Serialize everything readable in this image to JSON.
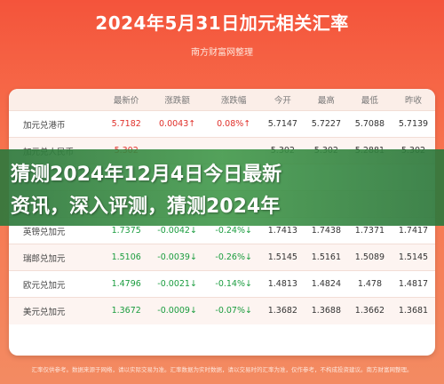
{
  "header": {
    "title": "2024年5月31日加元相关汇率",
    "source": "南方财富网整理"
  },
  "table": {
    "columns": [
      "",
      "最新价",
      "涨跌额",
      "涨跌幅",
      "今开",
      "最高",
      "最低",
      "昨收"
    ],
    "rows": [
      {
        "name": "加元兑港币",
        "price": "5.7182",
        "change": "0.0043↑",
        "pct": "0.08%↑",
        "open": "5.7147",
        "high": "5.7227",
        "low": "5.7088",
        "prev": "5.7139",
        "dir": "up"
      },
      {
        "name": "加元兑人民币",
        "price": "5.302",
        "change": "",
        "pct": "",
        "open": "5.302",
        "high": "5.302",
        "low": "5.2881",
        "prev": "5.302",
        "dir": "up"
      },
      {
        "name": "",
        "price": "",
        "change": "",
        "pct": "",
        "open": "",
        "high": "",
        "low": "",
        "prev": "",
        "dir": "up"
      },
      {
        "name": "",
        "price": "",
        "change": "",
        "pct": "",
        "open": "",
        "high": "",
        "low": "",
        "prev": "",
        "dir": "up"
      },
      {
        "name": "英镑兑加元",
        "price": "1.7375",
        "change": "-0.0042↓",
        "pct": "-0.24%↓",
        "open": "1.7413",
        "high": "1.7438",
        "low": "1.7371",
        "prev": "1.7417",
        "dir": "down"
      },
      {
        "name": "瑞郎兑加元",
        "price": "1.5106",
        "change": "-0.0039↓",
        "pct": "-0.26%↓",
        "open": "1.5145",
        "high": "1.5161",
        "low": "1.5089",
        "prev": "1.5145",
        "dir": "down"
      },
      {
        "name": "欧元兑加元",
        "price": "1.4796",
        "change": "-0.0021↓",
        "pct": "-0.14%↓",
        "open": "1.4813",
        "high": "1.4824",
        "low": "1.478",
        "prev": "1.4817",
        "dir": "down"
      },
      {
        "name": "美元兑加元",
        "price": "1.3672",
        "change": "-0.0009↓",
        "pct": "-0.07%↓",
        "open": "1.3682",
        "high": "1.3688",
        "low": "1.3662",
        "prev": "1.3681",
        "dir": "down"
      }
    ]
  },
  "overlay": {
    "line1": "猜测2024年12月4日今日最新",
    "line2": "资讯，深入评测，猜测2024年"
  },
  "footer": {
    "text": "汇率仅供参考。数据来源于网络，请以实际交易为准。汇率数据为实时数据，请以交易时的汇率为准，仅作参考，不构成投资建议。南方财富网整理。"
  },
  "colors": {
    "up": "#e0302a",
    "down": "#1a9c3e",
    "overlay": "#2e783c"
  }
}
